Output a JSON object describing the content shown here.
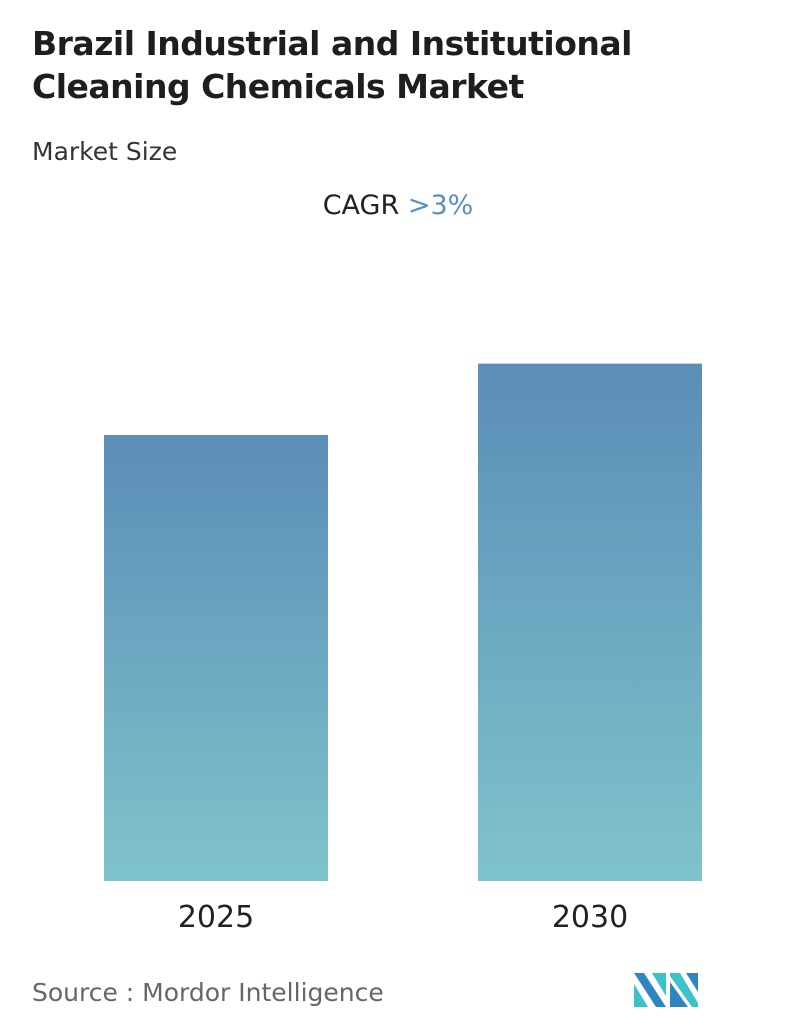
{
  "title_line1": "Brazil Industrial and Institutional",
  "title_line2": "Cleaning Chemicals Market",
  "subtitle": "Market Size",
  "cagr_label": "CAGR",
  "cagr_value": ">3%",
  "source": "Source :  Mordor Intelligence",
  "logo_text": "Mordor Intelligence",
  "colors": {
    "bar_top": "#5b8db8",
    "bar_bottom": "#7fc3cb",
    "accent": "#5b8fbf"
  },
  "chart_data": {
    "type": "bar",
    "categories": [
      "2025",
      "2030"
    ],
    "values": [
      1.0,
      1.16
    ],
    "title": "Brazil Industrial and Institutional Cleaning Chemicals Market",
    "subtitle": "Market Size",
    "xlabel": "",
    "ylabel": "",
    "grid": false,
    "annotation": "CAGR >3%"
  }
}
